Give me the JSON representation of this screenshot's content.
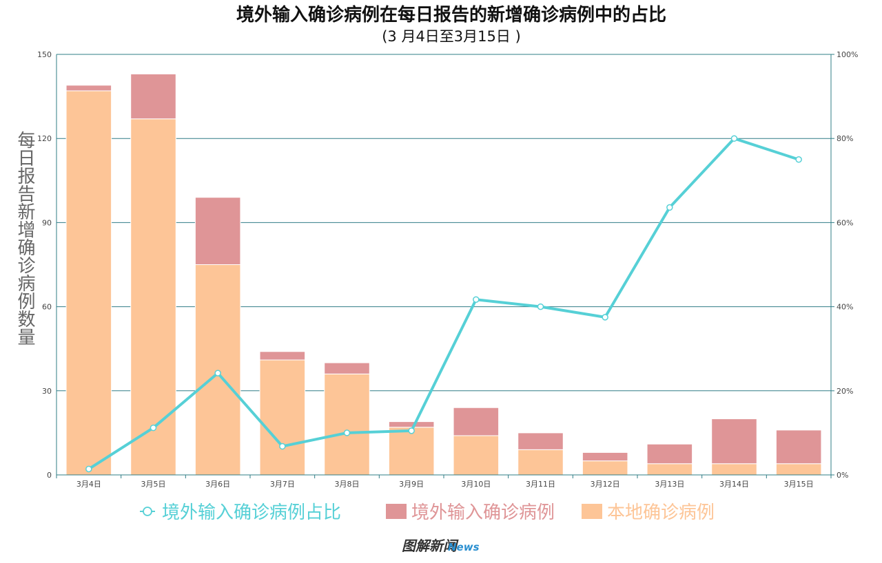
{
  "chart_data": {
    "type": "bar",
    "title": "境外输入确诊病例在每日报告的新增确诊病例中的占比",
    "subtitle": "(3 月4日至3月15日 )",
    "ylabel": "每日报告新增确诊病例数量",
    "categories": [
      "3月4日",
      "3月5日",
      "3月6日",
      "3月7日",
      "3月8日",
      "3月9日",
      "3月10日",
      "3月11日",
      "3月12日",
      "3月13日",
      "3月14日",
      "3月15日"
    ],
    "ylim": [
      0,
      150
    ],
    "yticks": [
      "0",
      "30",
      "60",
      "90",
      "120",
      "150"
    ],
    "y2lim": [
      0,
      100
    ],
    "y2ticks": [
      "0%",
      "20%",
      "40%",
      "60%",
      "80%",
      "100%"
    ],
    "grid": true,
    "legend_position": "bottom",
    "series": [
      {
        "name": "本地确诊病例",
        "kind": "bar",
        "stack": "total",
        "color": "#fdc597",
        "values": [
          137,
          127,
          75,
          41,
          36,
          17,
          14,
          9,
          5,
          4,
          4,
          4
        ]
      },
      {
        "name": "境外输入确诊病例",
        "kind": "bar",
        "stack": "total",
        "color": "#df9597",
        "values": [
          2,
          16,
          24,
          3,
          4,
          2,
          10,
          6,
          3,
          7,
          16,
          12
        ]
      },
      {
        "name": "境外输入确诊病例占比",
        "kind": "line",
        "axis": "right",
        "color": "#56d0d6",
        "values": [
          1.4,
          11.2,
          24.2,
          6.8,
          10.0,
          10.5,
          41.7,
          40.0,
          37.5,
          63.6,
          80.0,
          75.0
        ]
      }
    ]
  },
  "footer": {
    "logo_text": "图解新闻",
    "logo_sub": "News"
  }
}
